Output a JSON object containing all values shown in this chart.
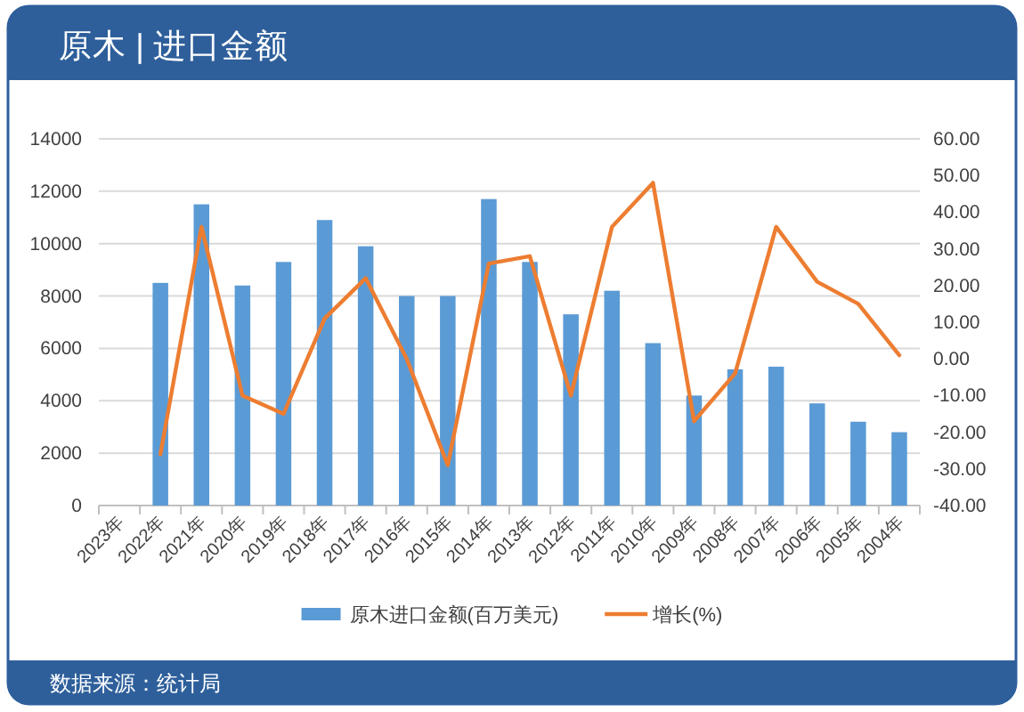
{
  "chart_data": {
    "type": "bar",
    "title": "原木 | 进口金额",
    "categories": [
      "2023年",
      "2022年",
      "2021年",
      "2020年",
      "2019年",
      "2018年",
      "2017年",
      "2016年",
      "2015年",
      "2014年",
      "2013年",
      "2012年",
      "2011年",
      "2010年",
      "2009年",
      "2008年",
      "2007年",
      "2006年",
      "2005年",
      "2004年"
    ],
    "series": [
      {
        "name": "原木进口金额(百万美元)",
        "color": "#5b9bd5",
        "values": [
          null,
          8500,
          11500,
          8400,
          9300,
          10900,
          9900,
          8000,
          8000,
          11700,
          9300,
          7300,
          8200,
          6200,
          4200,
          5200,
          5300,
          3900,
          3200,
          2800
        ]
      },
      {
        "name": "增长(%)",
        "type": "line",
        "axis": "y2",
        "color": "#ed7d31",
        "values": [
          null,
          -26,
          36,
          -10,
          -15,
          11,
          22,
          0,
          -29,
          26,
          28,
          -10,
          36,
          48,
          -17,
          -4,
          36,
          21,
          15,
          1
        ]
      }
    ],
    "ylim": [
      0,
      14000
    ],
    "yticks": [
      0,
      2000,
      4000,
      6000,
      8000,
      10000,
      12000,
      14000
    ],
    "y2lim": [
      -40,
      60
    ],
    "y2ticks": [
      {
        "value": -40,
        "label": "-40.00"
      },
      {
        "value": -30,
        "label": "-30.00"
      },
      {
        "value": -20,
        "label": "-20.00"
      },
      {
        "value": -10,
        "label": "-10.00"
      },
      {
        "value": 0,
        "label": "0.00"
      },
      {
        "value": 10,
        "label": "10.00"
      },
      {
        "value": 20,
        "label": "20.00"
      },
      {
        "value": 30,
        "label": "30.00"
      },
      {
        "value": 40,
        "label": "40.00"
      },
      {
        "value": 50,
        "label": "50.00"
      },
      {
        "value": 60,
        "label": "60.00"
      }
    ],
    "grid": "y",
    "legend": "bottom",
    "annotations": [
      "数据来源：统计局"
    ]
  }
}
